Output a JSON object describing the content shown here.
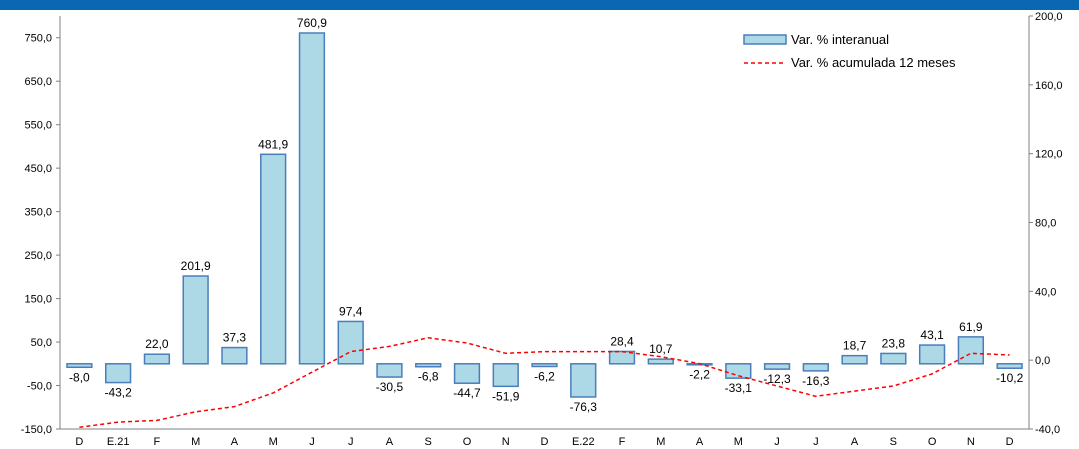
{
  "chart_data": {
    "type": "bar",
    "categories": [
      "D",
      "E.21",
      "F",
      "M",
      "A",
      "M",
      "J",
      "J",
      "A",
      "S",
      "O",
      "N",
      "D",
      "E.22",
      "F",
      "M",
      "A",
      "M",
      "J",
      "J",
      "A",
      "S",
      "O",
      "N",
      "D"
    ],
    "series": [
      {
        "name": "Var. % interanual",
        "type": "bar",
        "axis": "left",
        "color": "#add8e6",
        "values": [
          -8.0,
          -43.2,
          22.0,
          201.9,
          37.3,
          481.9,
          760.9,
          97.4,
          -30.5,
          -6.8,
          -44.7,
          -51.9,
          -6.2,
          -76.3,
          28.4,
          10.7,
          -2.2,
          -33.1,
          -12.3,
          -16.3,
          18.7,
          23.8,
          43.1,
          61.9,
          -10.2
        ],
        "labels": [
          "-8,0",
          "-43,2",
          "22,0",
          "201,9",
          "37,3",
          "481,9",
          "760,9",
          "97,4",
          "-30,5",
          "-6,8",
          "-44,7",
          "-51,9",
          "-6,2",
          "-76,3",
          "28,4",
          "10,7",
          "-2,2",
          "-33,1",
          "-12,3",
          "-16,3",
          "18,7",
          "23,8",
          "43,1",
          "61,9",
          "-10,2"
        ]
      },
      {
        "name": "Var. % acumulada 12 meses",
        "type": "line",
        "style": "dashed",
        "axis": "right",
        "color": "#ff0000",
        "values": [
          -39,
          -36,
          -35,
          -30,
          -27,
          -19,
          -7,
          5,
          8,
          13,
          10,
          4,
          5,
          5,
          5,
          2,
          -2,
          -9,
          -15,
          -21,
          -18,
          -15,
          -8,
          4,
          3
        ]
      }
    ],
    "yleft": {
      "ylim": [
        -150,
        800
      ],
      "ticks": [
        -150,
        -50,
        50,
        150,
        250,
        350,
        450,
        550,
        650,
        750
      ],
      "tick_labels": [
        "-150,0",
        "-50,0",
        "50,0",
        "150,0",
        "250,0",
        "350,0",
        "450,0",
        "550,0",
        "650,0",
        "750,0"
      ]
    },
    "yright": {
      "ylim": [
        -40,
        200
      ],
      "ticks": [
        -40,
        0,
        40,
        80,
        120,
        160,
        200
      ],
      "tick_labels": [
        "-40,0",
        "0,0",
        "40,0",
        "80,0",
        "120,0",
        "160,0",
        "200,0"
      ]
    },
    "legend": {
      "position": "top-right",
      "items": [
        {
          "label": "Var. % interanual",
          "kind": "bar"
        },
        {
          "label": "Var. % acumulada 12 meses",
          "kind": "dashed-line"
        }
      ]
    },
    "grid": false,
    "colors": {
      "bar_fill": "#add8e6",
      "bar_stroke": "#4a7ebb",
      "line": "#ff0000",
      "header_bar": "#0b67b2"
    }
  }
}
